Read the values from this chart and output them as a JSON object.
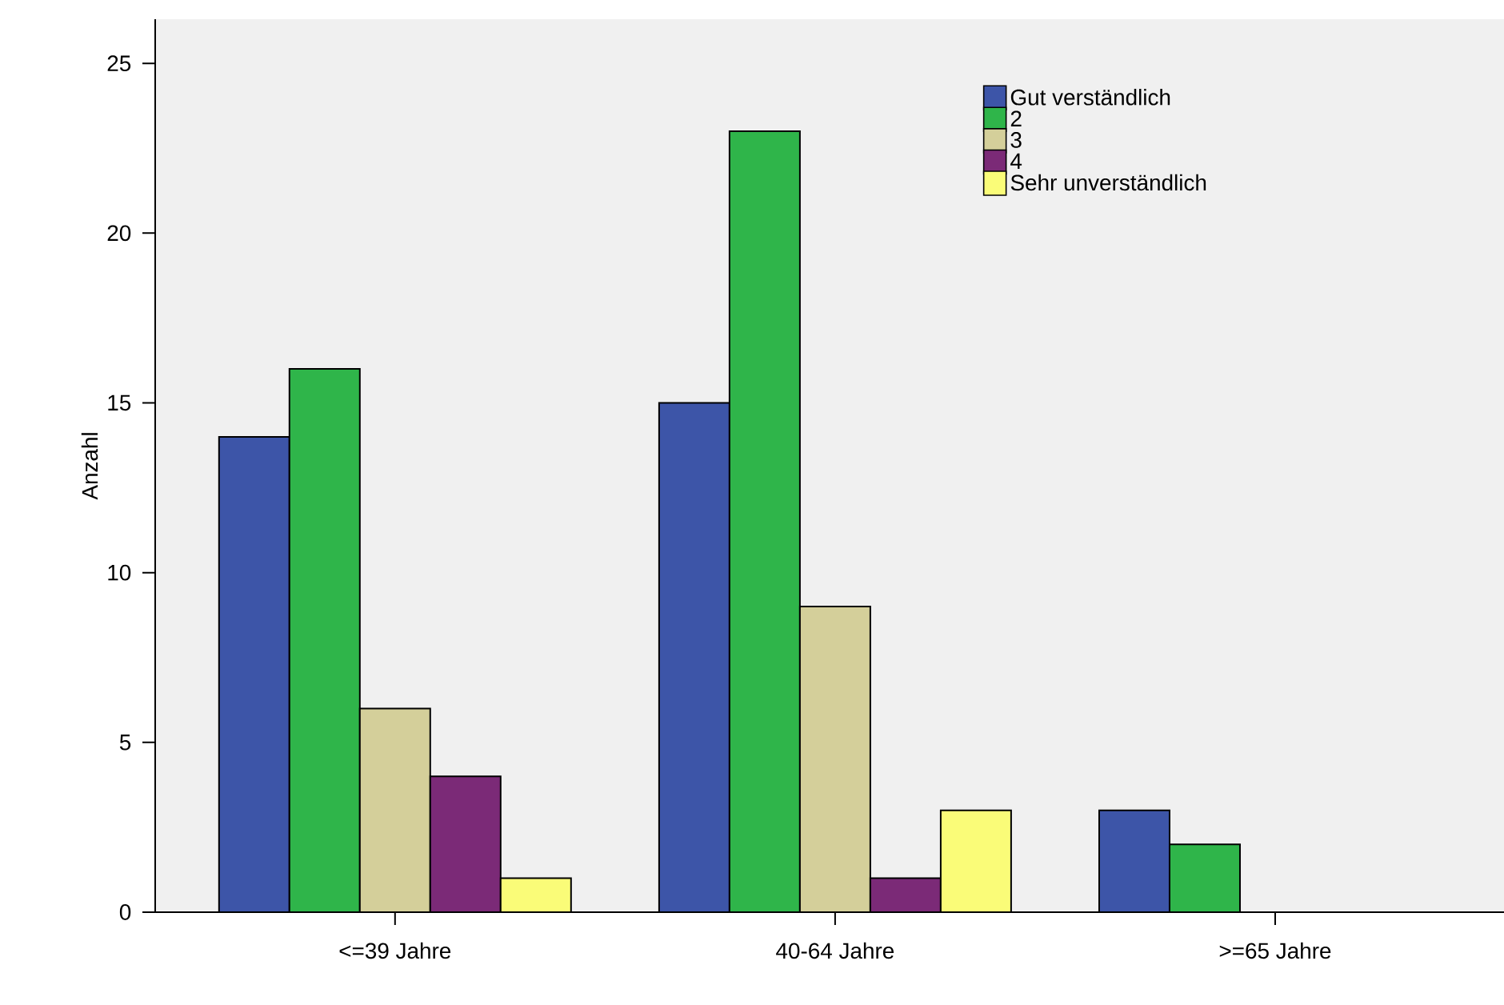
{
  "chart_data": {
    "type": "bar",
    "ylabel": "Anzahl",
    "categories": [
      "<=39 Jahre",
      "40-64 Jahre",
      ">=65 Jahre"
    ],
    "series": [
      {
        "name": "Gut verständlich",
        "color": "#3d55a8",
        "values": [
          14,
          15,
          3
        ]
      },
      {
        "name": "2",
        "color": "#2fb54a",
        "values": [
          16,
          23,
          2
        ]
      },
      {
        "name": "3",
        "color": "#d4cf9a",
        "values": [
          6,
          9,
          null
        ]
      },
      {
        "name": "4",
        "color": "#7b2a77",
        "values": [
          4,
          1,
          null
        ]
      },
      {
        "name": "Sehr unverständlich",
        "color": "#fafc78",
        "values": [
          1,
          3,
          null
        ]
      }
    ],
    "ylim": [
      0,
      26.3
    ],
    "yticks": [
      0,
      5,
      10,
      15,
      20,
      25
    ],
    "grid": false,
    "legend": "top right"
  }
}
